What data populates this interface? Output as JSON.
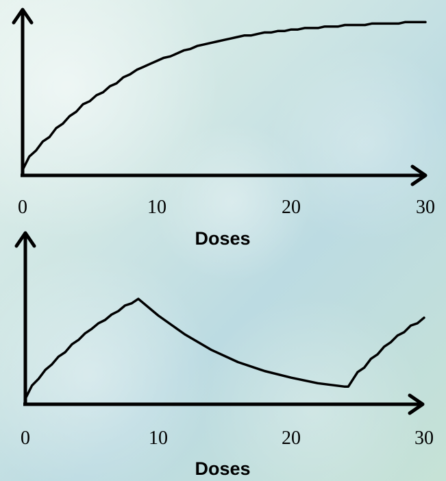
{
  "chart_data": [
    {
      "type": "line",
      "xlabel": "Doses",
      "ylabel": "",
      "xlim": [
        0,
        30
      ],
      "xticks": [
        "0",
        "10",
        "20",
        "30"
      ],
      "grid": false,
      "series": [
        {
          "x": [
            0,
            0.5,
            1,
            1.5,
            2,
            2.5,
            3,
            3.5,
            4,
            4.5,
            5,
            5.5,
            6,
            6.5,
            7,
            7.5,
            8,
            8.5,
            9,
            9.5,
            10,
            10.5,
            11,
            11.5,
            12,
            12.5,
            13,
            13.5,
            14,
            14.5,
            15,
            15.5,
            16,
            16.5,
            17,
            17.5,
            18,
            18.5,
            19,
            19.5,
            20,
            20.5,
            21,
            21.5,
            22,
            22.5,
            23,
            23.5,
            24,
            24.5,
            25,
            25.5,
            26,
            26.5,
            27,
            27.5,
            28,
            28.5,
            29,
            29.5,
            30
          ],
          "y": [
            0,
            0.09,
            0.13,
            0.19,
            0.22,
            0.28,
            0.31,
            0.36,
            0.39,
            0.44,
            0.46,
            0.5,
            0.52,
            0.56,
            0.58,
            0.62,
            0.64,
            0.67,
            0.69,
            0.71,
            0.73,
            0.75,
            0.76,
            0.78,
            0.8,
            0.81,
            0.83,
            0.84,
            0.85,
            0.86,
            0.87,
            0.88,
            0.89,
            0.9,
            0.9,
            0.91,
            0.92,
            0.92,
            0.93,
            0.93,
            0.94,
            0.94,
            0.95,
            0.95,
            0.95,
            0.96,
            0.96,
            0.96,
            0.97,
            0.97,
            0.97,
            0.97,
            0.98,
            0.98,
            0.98,
            0.98,
            0.98,
            0.99,
            0.99,
            0.99,
            0.99
          ]
        }
      ]
    },
    {
      "type": "line",
      "xlabel": "Doses",
      "ylabel": "",
      "xlim": [
        0,
        30
      ],
      "xticks": [
        "0",
        "10",
        "20",
        "30"
      ],
      "grid": false,
      "series": [
        {
          "x": [
            0,
            0.5,
            1,
            1.5,
            2,
            2.5,
            3,
            3.5,
            4,
            4.5,
            5,
            5.5,
            6,
            6.5,
            7,
            7.5,
            8,
            8.5,
            10,
            12,
            14,
            16,
            18,
            20,
            22,
            24,
            24.3,
            25,
            25.5,
            26,
            26.5,
            27,
            27.5,
            28,
            28.5,
            29,
            29.5,
            30
          ],
          "y": [
            0,
            0.12,
            0.18,
            0.26,
            0.31,
            0.38,
            0.42,
            0.49,
            0.53,
            0.59,
            0.63,
            0.68,
            0.71,
            0.76,
            0.79,
            0.84,
            0.86,
            0.9,
            0.75,
            0.58,
            0.44,
            0.33,
            0.25,
            0.19,
            0.14,
            0.11,
            0.11,
            0.24,
            0.28,
            0.36,
            0.4,
            0.47,
            0.51,
            0.57,
            0.6,
            0.66,
            0.68,
            0.73
          ]
        }
      ]
    }
  ]
}
